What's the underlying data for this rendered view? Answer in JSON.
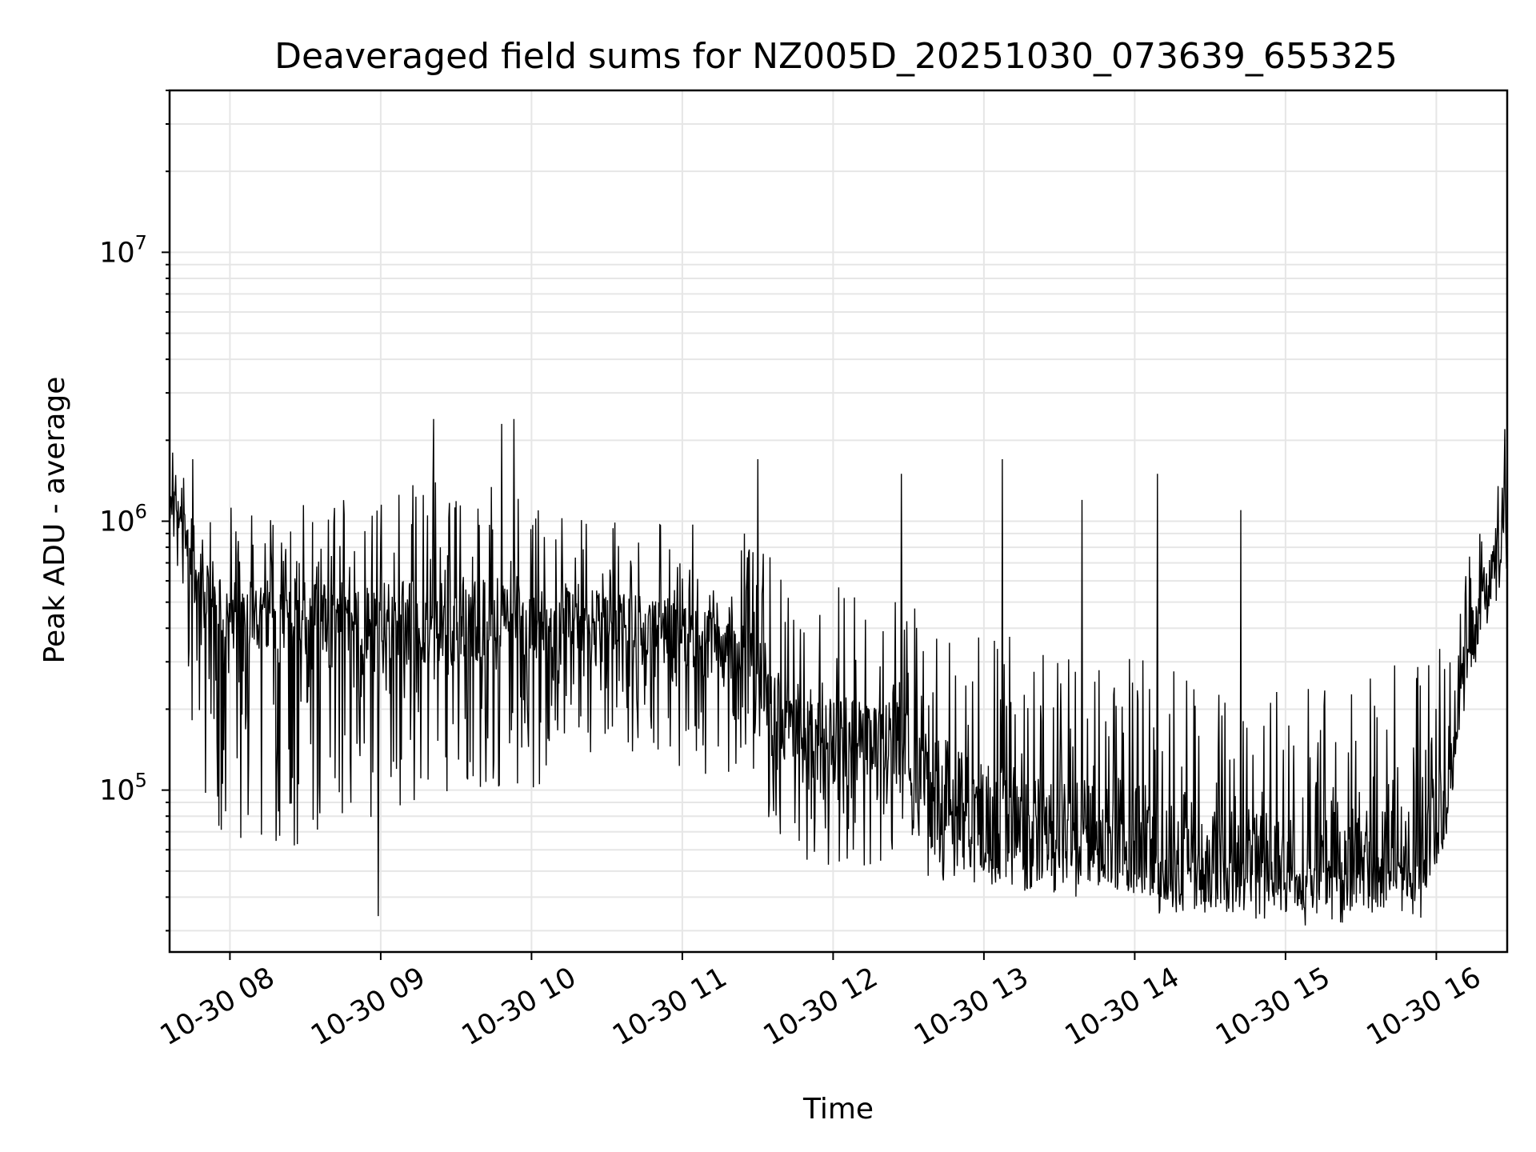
{
  "chart_data": {
    "type": "line",
    "title": "Deaveraged field sums for NZ005D_20251030_073639_655325",
    "xlabel": "Time",
    "ylabel": "Peak ADU - average",
    "yscale": "log",
    "ylim": [
      25000,
      40000000
    ],
    "xlim_hours": [
      7.6,
      16.47
    ],
    "grid": true,
    "line_color": "#000000",
    "x_ticks": [
      {
        "value": 8,
        "label": "10-30 08"
      },
      {
        "value": 9,
        "label": "10-30 09"
      },
      {
        "value": 10,
        "label": "10-30 10"
      },
      {
        "value": 11,
        "label": "10-30 11"
      },
      {
        "value": 12,
        "label": "10-30 12"
      },
      {
        "value": 13,
        "label": "10-30 13"
      },
      {
        "value": 14,
        "label": "10-30 14"
      },
      {
        "value": 15,
        "label": "10-30 15"
      },
      {
        "value": 16,
        "label": "10-30 16"
      }
    ],
    "y_ticks": [
      {
        "value": 100000,
        "base": "10",
        "exp": "5"
      },
      {
        "value": 1000000,
        "base": "10",
        "exp": "6"
      },
      {
        "value": 10000000,
        "base": "10",
        "exp": "7"
      }
    ],
    "series": [
      {
        "name": "deaveraged field sum",
        "envelope": {
          "hours": [
            7.6,
            7.7,
            7.75,
            8.0,
            8.5,
            9.0,
            9.5,
            10.0,
            10.5,
            11.0,
            11.5,
            11.65,
            12.0,
            12.45,
            12.7,
            13.0,
            13.5,
            14.0,
            14.2,
            14.5,
            15.0,
            15.5,
            15.9,
            16.05,
            16.2,
            16.35,
            16.47
          ],
          "median": [
            1200000,
            1000000,
            600000,
            450000,
            450000,
            420000,
            420000,
            450000,
            420000,
            380000,
            300000,
            180000,
            150000,
            150000,
            90000,
            80000,
            70000,
            70000,
            55000,
            55000,
            50000,
            52000,
            55000,
            90000,
            300000,
            650000,
            1000000
          ],
          "low": [
            800000,
            500000,
            120000,
            60000,
            60000,
            80000,
            100000,
            100000,
            150000,
            120000,
            100000,
            60000,
            50000,
            55000,
            45000,
            45000,
            40000,
            40000,
            35000,
            35000,
            35000,
            35000,
            38000,
            60000,
            200000,
            400000,
            600000
          ],
          "high": [
            1800000,
            1600000,
            1200000,
            1200000,
            1200000,
            1300000,
            1500000,
            1200000,
            1000000,
            1000000,
            900000,
            700000,
            600000,
            500000,
            500000,
            400000,
            350000,
            350000,
            300000,
            300000,
            250000,
            280000,
            300000,
            400000,
            800000,
            1500000,
            2000000
          ]
        },
        "spikes": [
          {
            "hour": 7.62,
            "value": 1800000
          },
          {
            "hour": 7.75,
            "value": 1700000
          },
          {
            "hour": 8.98,
            "value": 1100000
          },
          {
            "hour": 8.98,
            "value": 34000
          },
          {
            "hour": 9.35,
            "value": 2400000
          },
          {
            "hour": 9.8,
            "value": 2300000
          },
          {
            "hour": 9.88,
            "value": 2400000
          },
          {
            "hour": 11.5,
            "value": 1700000
          },
          {
            "hour": 12.45,
            "value": 1500000
          },
          {
            "hour": 13.12,
            "value": 1700000
          },
          {
            "hour": 13.65,
            "value": 1200000
          },
          {
            "hour": 14.15,
            "value": 1500000
          },
          {
            "hour": 14.7,
            "value": 1100000
          },
          {
            "hour": 16.45,
            "value": 2200000
          }
        ]
      }
    ]
  }
}
